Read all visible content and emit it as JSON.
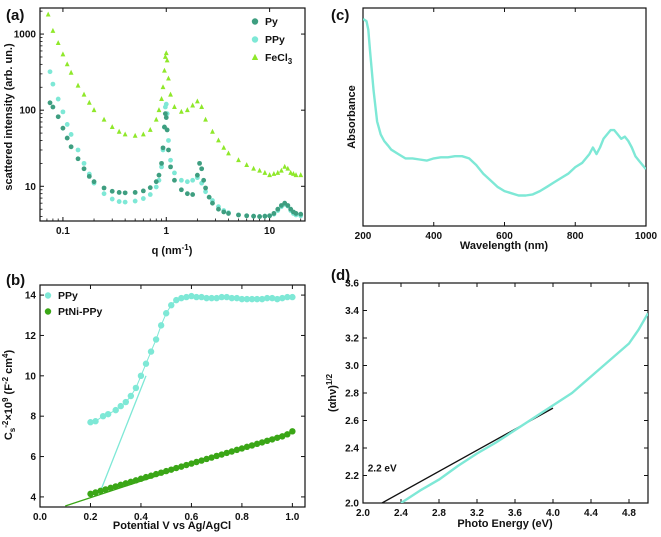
{
  "colors": {
    "py": "#3e9e80",
    "ppy": "#7ee8d6",
    "fecl3": "#8fe82a",
    "ptni": "#3aa616",
    "fit": "#111111",
    "axis": "#111111"
  },
  "chart_data": [
    {
      "id": "a",
      "panel_label": "(a)",
      "type": "scatter",
      "xscale": "log",
      "yscale": "log",
      "xlabel": "q (nm",
      "xlabel_sup": "-1",
      "xlabel_end": ")",
      "ylabel": "scattered intensity (arb. un.)",
      "xlim": [
        0.06,
        22
      ],
      "ylim": [
        3.5,
        2200
      ],
      "xticks": [
        0.1,
        1,
        10
      ],
      "xtick_labels": [
        "0.1",
        "1",
        "10"
      ],
      "yticks": [
        10,
        100,
        1000
      ],
      "ytick_labels": [
        "10",
        "100",
        "1000"
      ],
      "legend": [
        {
          "label": "Py",
          "marker": "circle",
          "color_key": "py"
        },
        {
          "label": "PPy",
          "marker": "circle",
          "color_key": "ppy"
        },
        {
          "label": "FeCl",
          "label_sub": "3",
          "marker": "triangle",
          "color_key": "fecl3"
        }
      ],
      "series": [
        {
          "name": "FeCl3",
          "color_key": "fecl3",
          "marker": "triangle",
          "x": [
            0.072,
            0.08,
            0.09,
            0.1,
            0.11,
            0.12,
            0.14,
            0.16,
            0.18,
            0.2,
            0.25,
            0.3,
            0.35,
            0.4,
            0.5,
            0.6,
            0.7,
            0.8,
            0.85,
            0.9,
            0.93,
            0.96,
            0.98,
            1.0,
            1.02,
            1.05,
            1.1,
            1.2,
            1.4,
            1.6,
            1.8,
            2.0,
            2.2,
            2.4,
            2.8,
            3.2,
            3.6,
            4.0,
            5,
            6,
            7,
            8,
            9,
            10,
            11,
            12,
            13,
            14,
            15,
            16,
            17,
            18,
            20
          ],
          "y": [
            1800,
            1100,
            760,
            540,
            400,
            310,
            210,
            160,
            125,
            100,
            75,
            60,
            52,
            48,
            46,
            48,
            55,
            75,
            100,
            140,
            200,
            330,
            500,
            560,
            450,
            260,
            160,
            110,
            95,
            100,
            115,
            130,
            110,
            75,
            52,
            40,
            32,
            27,
            22,
            19,
            17,
            16,
            15,
            14,
            14.5,
            15,
            16,
            18,
            17,
            15,
            14.5,
            14,
            14
          ]
        },
        {
          "name": "PPy",
          "color_key": "ppy",
          "marker": "circle",
          "x": [
            0.075,
            0.08,
            0.09,
            0.1,
            0.11,
            0.12,
            0.14,
            0.16,
            0.18,
            0.2,
            0.25,
            0.3,
            0.35,
            0.4,
            0.5,
            0.6,
            0.7,
            0.8,
            0.85,
            0.9,
            0.93,
            0.96,
            0.98,
            1.0,
            1.02,
            1.05,
            1.1,
            1.2,
            1.4,
            1.6,
            1.8,
            2.0,
            2.2,
            2.4,
            2.8,
            3.2,
            3.6,
            4.0,
            5,
            6,
            7,
            8,
            9,
            10,
            11,
            12,
            13,
            14,
            15,
            16,
            17,
            18,
            20
          ],
          "y": [
            320,
            220,
            140,
            95,
            65,
            48,
            30,
            20,
            14.5,
            11,
            8,
            6.8,
            6.3,
            6.2,
            6.4,
            6.9,
            7.8,
            9.8,
            12,
            18,
            30,
            60,
            110,
            120,
            90,
            40,
            22,
            15,
            12,
            11.5,
            12,
            13,
            11,
            8.5,
            6.5,
            5.4,
            4.8,
            4.5,
            4.2,
            4.1,
            4.05,
            4.0,
            4.05,
            4.1,
            4.3,
            4.8,
            5.4,
            5.8,
            5.5,
            4.8,
            4.4,
            4.2,
            4.1
          ]
        },
        {
          "name": "Py",
          "color_key": "py",
          "marker": "circle",
          "x": [
            0.075,
            0.08,
            0.09,
            0.1,
            0.11,
            0.12,
            0.14,
            0.16,
            0.18,
            0.2,
            0.25,
            0.3,
            0.35,
            0.4,
            0.5,
            0.6,
            0.7,
            0.8,
            0.85,
            0.9,
            0.93,
            0.96,
            0.98,
            1.0,
            1.02,
            1.05,
            1.1,
            1.2,
            1.4,
            1.6,
            1.8,
            2.0,
            2.1,
            2.2,
            2.3,
            2.4,
            2.6,
            2.8,
            3.2,
            3.6,
            4.0,
            5,
            6,
            7,
            8,
            9,
            10,
            11,
            12,
            13,
            14,
            15,
            16,
            17,
            18,
            20
          ],
          "y": [
            125,
            110,
            82,
            58,
            43,
            33,
            23,
            17,
            13.5,
            11.5,
            9.5,
            8.6,
            8.3,
            8.2,
            8.3,
            8.7,
            9.6,
            11.5,
            14,
            20,
            32,
            60,
            90,
            80,
            55,
            30,
            18,
            12,
            9,
            8,
            7.8,
            14,
            20,
            17,
            12,
            9.5,
            7.2,
            6.0,
            5.0,
            4.6,
            4.4,
            4.2,
            4.1,
            4.05,
            4.0,
            4.05,
            4.1,
            4.4,
            5.0,
            5.6,
            6.0,
            5.6,
            5.0,
            4.6,
            4.4,
            4.3
          ]
        }
      ]
    },
    {
      "id": "b",
      "panel_label": "(b)",
      "type": "scatter",
      "xlabel": "Potential V vs Ag/AgCl",
      "ylabel_parts": [
        "C",
        "s",
        "-2",
        "×10",
        "9",
        " (F",
        "-2",
        " cm",
        "4",
        ")"
      ],
      "xlim": [
        0.0,
        1.05
      ],
      "ylim": [
        3.5,
        14.5
      ],
      "xticks": [
        0.0,
        0.2,
        0.4,
        0.6,
        0.8,
        1.0
      ],
      "xtick_labels": [
        "0.0",
        "0.2",
        "0.4",
        "0.6",
        "0.8",
        "1.0"
      ],
      "yticks": [
        4,
        6,
        8,
        10,
        12,
        14
      ],
      "ytick_labels": [
        "4",
        "6",
        "8",
        "10",
        "12",
        "14"
      ],
      "legend": [
        {
          "label": "PPy",
          "marker": "circle",
          "color_key": "ppy"
        },
        {
          "label": "PtNi-PPy",
          "marker": "circle",
          "color_key": "ptni"
        }
      ],
      "series": [
        {
          "name": "PPy",
          "color_key": "ppy",
          "marker": "circle",
          "x": [
            0.2,
            0.22,
            0.25,
            0.27,
            0.3,
            0.32,
            0.34,
            0.36,
            0.38,
            0.4,
            0.42,
            0.44,
            0.46,
            0.48,
            0.5,
            0.52,
            0.54,
            0.56,
            0.58,
            0.6,
            0.62,
            0.64,
            0.66,
            0.68,
            0.7,
            0.72,
            0.74,
            0.76,
            0.78,
            0.8,
            0.82,
            0.84,
            0.86,
            0.88,
            0.9,
            0.92,
            0.94,
            0.96,
            0.98,
            1.0
          ],
          "y": [
            7.7,
            7.75,
            8.0,
            8.1,
            8.3,
            8.5,
            8.7,
            9.0,
            9.4,
            10.0,
            10.6,
            11.2,
            11.8,
            12.5,
            13.1,
            13.5,
            13.75,
            13.85,
            13.9,
            13.95,
            13.9,
            13.9,
            13.85,
            13.85,
            13.85,
            13.9,
            13.9,
            13.85,
            13.85,
            13.8,
            13.8,
            13.8,
            13.8,
            13.8,
            13.85,
            13.85,
            13.8,
            13.85,
            13.9,
            13.9
          ]
        },
        {
          "name": "PtNi-PPy",
          "color_key": "ptni",
          "marker": "circle",
          "x": [
            0.2,
            0.22,
            0.24,
            0.26,
            0.28,
            0.3,
            0.32,
            0.34,
            0.36,
            0.38,
            0.4,
            0.42,
            0.44,
            0.46,
            0.48,
            0.5,
            0.52,
            0.54,
            0.56,
            0.58,
            0.6,
            0.62,
            0.64,
            0.66,
            0.68,
            0.7,
            0.72,
            0.74,
            0.76,
            0.78,
            0.8,
            0.82,
            0.84,
            0.86,
            0.88,
            0.9,
            0.92,
            0.94,
            0.96,
            0.98,
            1.0
          ],
          "y": [
            4.15,
            4.22,
            4.3,
            4.37,
            4.45,
            4.52,
            4.6,
            4.67,
            4.75,
            4.82,
            4.9,
            4.98,
            5.05,
            5.13,
            5.2,
            5.28,
            5.35,
            5.43,
            5.5,
            5.58,
            5.65,
            5.73,
            5.8,
            5.88,
            5.95,
            6.03,
            6.1,
            6.18,
            6.25,
            6.33,
            6.4,
            6.48,
            6.55,
            6.63,
            6.7,
            6.78,
            6.85,
            6.93,
            7.0,
            7.1,
            7.25
          ]
        }
      ],
      "fit_lines": [
        {
          "color_key": "ppy",
          "x": [
            0.24,
            0.42
          ],
          "y": [
            4.3,
            10.0
          ]
        },
        {
          "color_key": "ptni",
          "x": [
            0.1,
            1.0
          ],
          "y": [
            3.55,
            7.25
          ]
        }
      ]
    },
    {
      "id": "c",
      "panel_label": "(c)",
      "type": "line",
      "xlabel": "Wavelength (nm)",
      "ylabel": "Absorbance",
      "xlim": [
        200,
        1000
      ],
      "ylim": [
        0,
        1
      ],
      "xticks": [
        200,
        400,
        600,
        800,
        1000
      ],
      "xtick_labels": [
        "200",
        "400",
        "600",
        "800",
        "1000"
      ],
      "yticks": [],
      "ytick_labels": [],
      "series": [
        {
          "name": "spectrum",
          "color_key": "ppy",
          "x": [
            200,
            210,
            215,
            220,
            230,
            240,
            250,
            260,
            270,
            280,
            300,
            320,
            340,
            360,
            380,
            400,
            420,
            440,
            460,
            480,
            500,
            520,
            540,
            560,
            580,
            600,
            620,
            640,
            660,
            680,
            700,
            720,
            740,
            760,
            780,
            800,
            820,
            840,
            850,
            860,
            870,
            880,
            890,
            900,
            910,
            920,
            930,
            940,
            950,
            960,
            970,
            980,
            990,
            1000
          ],
          "y": [
            0.95,
            0.94,
            0.9,
            0.8,
            0.62,
            0.48,
            0.42,
            0.39,
            0.37,
            0.35,
            0.33,
            0.31,
            0.31,
            0.305,
            0.3,
            0.31,
            0.315,
            0.315,
            0.32,
            0.32,
            0.31,
            0.28,
            0.24,
            0.21,
            0.18,
            0.16,
            0.15,
            0.14,
            0.14,
            0.145,
            0.16,
            0.18,
            0.2,
            0.22,
            0.24,
            0.27,
            0.29,
            0.33,
            0.36,
            0.33,
            0.36,
            0.4,
            0.42,
            0.44,
            0.44,
            0.42,
            0.4,
            0.41,
            0.39,
            0.36,
            0.32,
            0.3,
            0.28,
            0.26
          ]
        }
      ]
    },
    {
      "id": "d",
      "panel_label": "(d)",
      "type": "line",
      "xlabel": "Photo Energy (eV)",
      "ylabel": "(αhν)",
      "ylabel_sup": "1/2",
      "xlim": [
        2.0,
        5.0
      ],
      "ylim": [
        2.0,
        3.6
      ],
      "xticks": [
        2.0,
        2.4,
        2.8,
        3.2,
        3.6,
        4.0,
        4.4,
        4.8
      ],
      "xtick_labels": [
        "2.0",
        "2.4",
        "2.8",
        "3.2",
        "3.6",
        "4.0",
        "4.4",
        "4.8"
      ],
      "yticks": [
        2.0,
        2.2,
        2.4,
        2.6,
        2.8,
        3.0,
        3.2,
        3.4,
        3.6
      ],
      "ytick_labels": [
        "2.0",
        "2.2",
        "2.4",
        "2.6",
        "2.8",
        "3.0",
        "3.2",
        "3.4",
        "3.6"
      ],
      "annotation": {
        "text": "2.2   eV",
        "x": 2.05,
        "y": 2.23
      },
      "series": [
        {
          "name": "tauc",
          "color_key": "ppy",
          "x": [
            2.4,
            2.6,
            2.8,
            3.0,
            3.2,
            3.4,
            3.6,
            3.8,
            4.0,
            4.2,
            4.4,
            4.6,
            4.8,
            4.9,
            5.0
          ],
          "y": [
            2.0,
            2.09,
            2.17,
            2.27,
            2.36,
            2.44,
            2.53,
            2.62,
            2.71,
            2.8,
            2.92,
            3.04,
            3.16,
            3.26,
            3.38
          ]
        }
      ],
      "fit_lines": [
        {
          "color_key": "fit",
          "x": [
            2.2,
            4.0
          ],
          "y": [
            2.0,
            2.69
          ]
        }
      ]
    }
  ]
}
